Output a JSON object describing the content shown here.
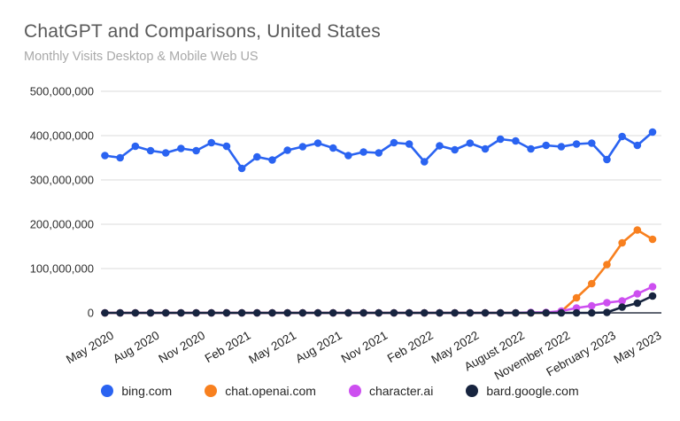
{
  "header": {
    "title": "ChatGPT and Comparisons, United States",
    "subtitle": "Monthly Visits Desktop & Mobile Web US"
  },
  "chart_data": {
    "type": "line",
    "title": "ChatGPT and Comparisons, United States",
    "subtitle": "Monthly Visits Desktop & Mobile Web US",
    "xlabel": "",
    "ylabel": "",
    "grid": "horizontal",
    "legend_position": "bottom",
    "ylim": [
      0,
      500000000
    ],
    "y_ticks": [
      0,
      100000000,
      200000000,
      300000000,
      400000000,
      500000000
    ],
    "y_tick_labels": [
      "0",
      "100,000,000",
      "200,000,000",
      "300,000,000",
      "400,000,000",
      "500,000,000"
    ],
    "x_categories": [
      "May 2020",
      "Jun 2020",
      "Jul 2020",
      "Aug 2020",
      "Sep 2020",
      "Oct 2020",
      "Nov 2020",
      "Dec 2020",
      "Jan 2021",
      "Feb 2021",
      "Mar 2021",
      "Apr 2021",
      "May 2021",
      "Jun 2021",
      "Jul 2021",
      "Aug 2021",
      "Sep 2021",
      "Oct 2021",
      "Nov 2021",
      "Dec 2021",
      "Jan 2022",
      "Feb 2022",
      "Mar 2022",
      "Apr 2022",
      "May 2022",
      "Jun 2022",
      "Jul 2022",
      "Aug 2022",
      "Sep 2022",
      "Oct 2022",
      "Nov 2022",
      "Dec 2022",
      "Jan 2023",
      "Feb 2023",
      "Mar 2023",
      "Apr 2023",
      "May 2023"
    ],
    "x_tick_indices": [
      0,
      3,
      6,
      9,
      12,
      15,
      18,
      21,
      24,
      27,
      30,
      33,
      36
    ],
    "x_tick_labels": [
      "May 2020",
      "Aug 2020",
      "Nov 2020",
      "Feb 2021",
      "May 2021",
      "Aug 2021",
      "Nov 2021",
      "Feb 2022",
      "May 2022",
      "August 2022",
      "November 2022",
      "February 2023",
      "May 2023"
    ],
    "series": [
      {
        "name": "bing.com",
        "color": "#2a63f1",
        "values": [
          355000000,
          350000000,
          376000000,
          366000000,
          361000000,
          371000000,
          366000000,
          384000000,
          376000000,
          326000000,
          352000000,
          345000000,
          367000000,
          375000000,
          383000000,
          372000000,
          355000000,
          363000000,
          361000000,
          384000000,
          381000000,
          341000000,
          377000000,
          368000000,
          383000000,
          370000000,
          392000000,
          388000000,
          370000000,
          378000000,
          375000000,
          381000000,
          383000000,
          346000000,
          398000000,
          378000000,
          408000000
        ]
      },
      {
        "name": "chat.openai.com",
        "color": "#f8801f",
        "values": [
          0,
          0,
          0,
          0,
          0,
          0,
          0,
          0,
          0,
          0,
          0,
          0,
          0,
          0,
          0,
          0,
          0,
          0,
          0,
          0,
          0,
          0,
          0,
          0,
          0,
          0,
          0,
          0,
          0,
          0,
          3000000,
          34000000,
          66000000,
          109000000,
          158000000,
          187000000,
          166000000
        ]
      },
      {
        "name": "character.ai",
        "color": "#cd4ff0",
        "values": [
          0,
          0,
          0,
          0,
          0,
          0,
          0,
          0,
          0,
          0,
          0,
          0,
          0,
          0,
          0,
          0,
          0,
          0,
          0,
          0,
          0,
          0,
          0,
          0,
          0,
          0,
          0,
          0,
          1000000,
          1000000,
          4000000,
          11000000,
          16000000,
          23000000,
          27000000,
          43000000,
          59000000
        ]
      },
      {
        "name": "bard.google.com",
        "color": "#17243f",
        "values": [
          0,
          0,
          0,
          0,
          0,
          0,
          0,
          0,
          0,
          0,
          0,
          0,
          0,
          0,
          0,
          0,
          0,
          0,
          0,
          0,
          0,
          0,
          0,
          0,
          0,
          0,
          0,
          0,
          0,
          0,
          0,
          0,
          0,
          1000000,
          13000000,
          22000000,
          38000000
        ]
      }
    ]
  },
  "legend": {
    "items": [
      "bing.com",
      "chat.openai.com",
      "character.ai",
      "bard.google.com"
    ]
  }
}
